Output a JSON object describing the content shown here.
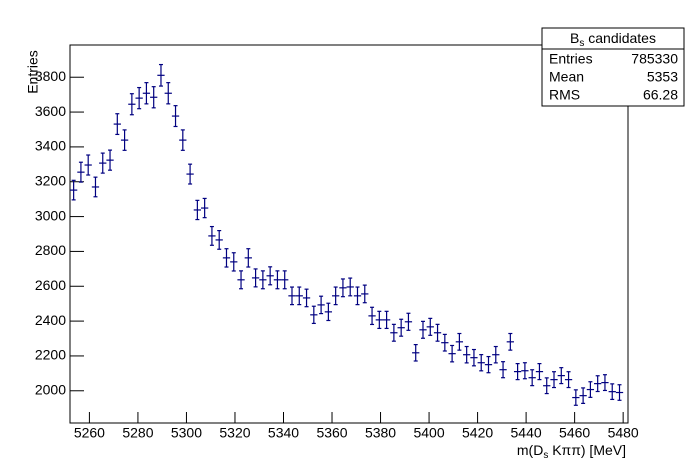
{
  "chart_data": {
    "type": "histogram",
    "x_label": [
      "m(D",
      "s",
      " Kππ) [MeV]"
    ],
    "y_label": "Entries",
    "stats": {
      "title": [
        "B",
        "s",
        " candidates"
      ],
      "rows": [
        [
          "Entries",
          "785330"
        ],
        [
          "Mean",
          "5353"
        ],
        [
          "RMS",
          "66.28"
        ]
      ]
    },
    "color": "#000080",
    "bins": [
      5252,
      5255,
      5258,
      5261,
      5264,
      5267,
      5270,
      5273,
      5276,
      5279,
      5282,
      5285,
      5288,
      5291,
      5294,
      5297,
      5300,
      5303,
      5306,
      5309,
      5312,
      5315,
      5318,
      5321,
      5324,
      5327,
      5330,
      5333,
      5336,
      5339,
      5342,
      5345,
      5348,
      5351,
      5354,
      5357,
      5360,
      5363,
      5366,
      5369,
      5372,
      5375,
      5378,
      5381,
      5384,
      5387,
      5390,
      5393,
      5396,
      5399,
      5402,
      5405,
      5408,
      5411,
      5414,
      5417,
      5420,
      5423,
      5426,
      5429,
      5432,
      5435,
      5438,
      5441,
      5444,
      5447,
      5450,
      5453,
      5456,
      5459,
      5462,
      5465,
      5468,
      5471,
      5474,
      5477,
      5480
    ],
    "values": [
      3152,
      3255,
      3296,
      3170,
      3307,
      3324,
      3531,
      3439,
      3645,
      3680,
      3708,
      3685,
      3811,
      3708,
      3577,
      3439,
      3244,
      3038,
      3049,
      2889,
      2866,
      2763,
      2740,
      2637,
      2763,
      2648,
      2637,
      2660,
      2637,
      2637,
      2545,
      2545,
      2533,
      2436,
      2493,
      2453,
      2545,
      2591,
      2596,
      2545,
      2556,
      2430,
      2407,
      2407,
      2333,
      2362,
      2396,
      2218,
      2350,
      2367,
      2333,
      2276,
      2213,
      2281,
      2207,
      2190,
      2161,
      2150,
      2207,
      2121,
      2281,
      2110,
      2115,
      2075,
      2110,
      2029,
      2064,
      2087,
      2064,
      1961,
      1972,
      2007,
      2041,
      2047,
      1995,
      1990
    ],
    "xlim": [
      5252,
      5482
    ],
    "xticks": [
      5260,
      5280,
      5300,
      5320,
      5340,
      5360,
      5380,
      5400,
      5420,
      5440,
      5460,
      5480
    ],
    "ylim": [
      1815,
      3985
    ],
    "yticks": [
      2000,
      2200,
      2400,
      2600,
      2800,
      3000,
      3200,
      3400,
      3600,
      3800
    ]
  }
}
